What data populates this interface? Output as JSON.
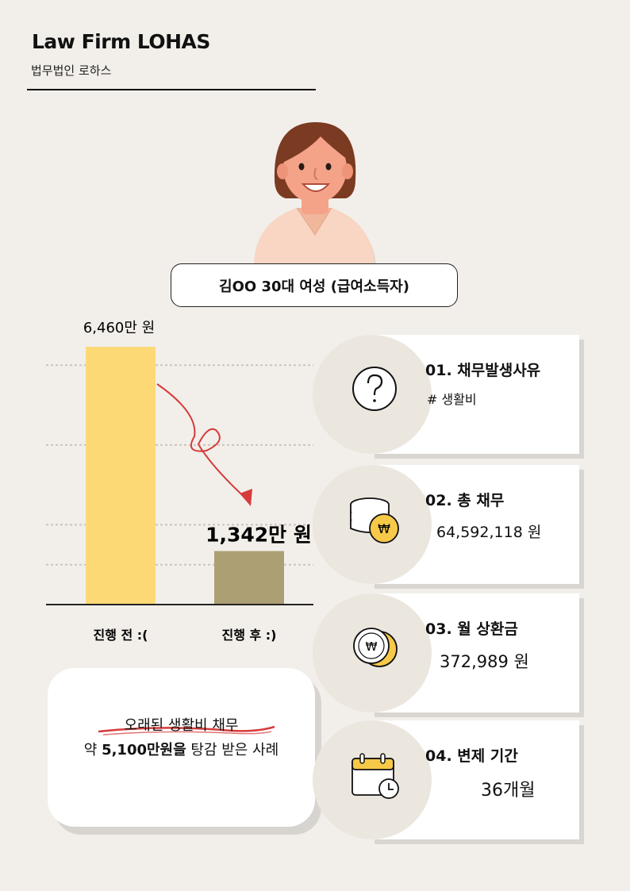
{
  "header": {
    "brand_title": "Law Firm LOHAS",
    "brand_subtitle": "법무법인 로하스"
  },
  "client": {
    "label": "김OO 30대 여성 (급여소득자)"
  },
  "chart_data": {
    "type": "bar",
    "categories": [
      "진행 전 :(",
      "진행 후 :)"
    ],
    "values": [
      6460,
      1342
    ],
    "value_labels": [
      "6,460만 원",
      "1,342만 원"
    ],
    "ylim": [
      0,
      7000
    ],
    "grid": true,
    "colors": [
      "#fdd976",
      "#ad9f74"
    ]
  },
  "summary": {
    "line1": "오래된 생활비 채무",
    "line2_prefix": "약 ",
    "line2_bold": "5,100만원을",
    "line2_suffix": " 탕감 받은 사례"
  },
  "cards": [
    {
      "title": "01. 채무발생사유",
      "value": "# 생활비",
      "icon": "question-icon"
    },
    {
      "title": "02. 총 채무",
      "value": "64,592,118 원",
      "icon": "coin-stack-icon"
    },
    {
      "title": "03. 월 상환금",
      "value": "372,989 원",
      "icon": "won-coins-icon"
    },
    {
      "title": "04. 변제 기간",
      "value": "36개월",
      "icon": "calendar-clock-icon"
    }
  ],
  "colors": {
    "background": "#f2efea",
    "bar_before": "#fdd976",
    "bar_after": "#ad9f74",
    "accent_red": "#d63b3b",
    "coin_yellow": "#f7c948"
  }
}
